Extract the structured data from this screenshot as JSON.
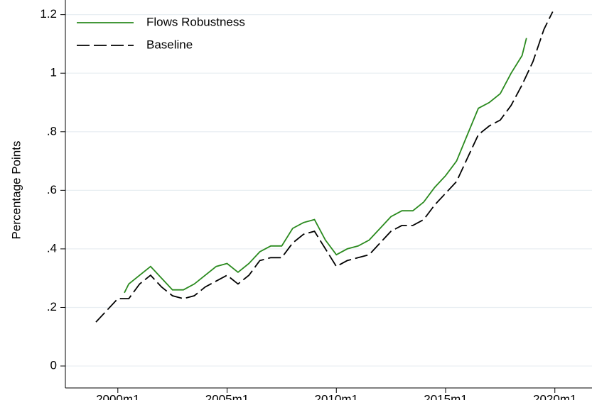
{
  "chart_data": {
    "type": "line",
    "y_label": "Percentage Points",
    "xlim": [
      1997.6,
      2021.7
    ],
    "ylim": [
      -0.075,
      1.25
    ],
    "xticks": [
      {
        "value": 2000,
        "label": "2000m1"
      },
      {
        "value": 2005,
        "label": "2005m1"
      },
      {
        "value": 2010,
        "label": "2010m1"
      },
      {
        "value": 2015,
        "label": "2015m1"
      },
      {
        "value": 2020,
        "label": "2020m1"
      }
    ],
    "yticks": [
      0,
      {
        "value": 0.2,
        "label": ".2"
      },
      {
        "value": 0.4,
        "label": ".4"
      },
      {
        "value": 0.6,
        "label": ".6"
      },
      {
        "value": 0.8,
        "label": ".8"
      },
      1,
      1.2
    ],
    "grid": true,
    "legend": "top-left",
    "series": [
      {
        "name": "Flows Robustness",
        "color": "#2a8a1e",
        "dash": "solid",
        "x": [
          2000.3,
          2000.5,
          2001.0,
          2001.5,
          2002.0,
          2002.5,
          2003.0,
          2003.5,
          2004.0,
          2004.5,
          2005.0,
          2005.5,
          2006.0,
          2006.5,
          2007.0,
          2007.5,
          2008.0,
          2008.5,
          2009.0,
          2009.5,
          2010.0,
          2010.5,
          2011.0,
          2011.5,
          2012.0,
          2012.5,
          2013.0,
          2013.5,
          2014.0,
          2014.5,
          2015.0,
          2015.5,
          2016.0,
          2016.5,
          2017.0,
          2017.5,
          2018.0,
          2018.5,
          2018.7
        ],
        "values": [
          0.25,
          0.28,
          0.31,
          0.34,
          0.3,
          0.26,
          0.26,
          0.28,
          0.31,
          0.34,
          0.35,
          0.32,
          0.35,
          0.39,
          0.41,
          0.41,
          0.47,
          0.49,
          0.5,
          0.43,
          0.38,
          0.4,
          0.41,
          0.43,
          0.47,
          0.51,
          0.53,
          0.53,
          0.56,
          0.61,
          0.65,
          0.7,
          0.79,
          0.88,
          0.9,
          0.93,
          1.0,
          1.06,
          1.12
        ]
      },
      {
        "name": "Baseline",
        "color": "#000000",
        "dash": "dashed",
        "x": [
          1999.0,
          1999.5,
          2000.0,
          2000.5,
          2001.0,
          2001.5,
          2002.0,
          2002.5,
          2003.0,
          2003.5,
          2004.0,
          2004.5,
          2005.0,
          2005.5,
          2006.0,
          2006.5,
          2007.0,
          2007.5,
          2008.0,
          2008.5,
          2009.0,
          2009.5,
          2010.0,
          2010.5,
          2011.0,
          2011.5,
          2012.0,
          2012.5,
          2013.0,
          2013.5,
          2014.0,
          2014.5,
          2015.0,
          2015.5,
          2016.0,
          2016.5,
          2017.0,
          2017.5,
          2018.0,
          2018.5,
          2019.0,
          2019.5,
          2019.9
        ],
        "values": [
          0.15,
          0.19,
          0.23,
          0.23,
          0.28,
          0.31,
          0.27,
          0.24,
          0.23,
          0.24,
          0.27,
          0.29,
          0.31,
          0.28,
          0.31,
          0.36,
          0.37,
          0.37,
          0.42,
          0.45,
          0.46,
          0.4,
          0.34,
          0.36,
          0.37,
          0.38,
          0.42,
          0.46,
          0.48,
          0.48,
          0.5,
          0.55,
          0.59,
          0.63,
          0.71,
          0.79,
          0.82,
          0.84,
          0.89,
          0.96,
          1.04,
          1.15,
          1.21
        ]
      }
    ]
  }
}
